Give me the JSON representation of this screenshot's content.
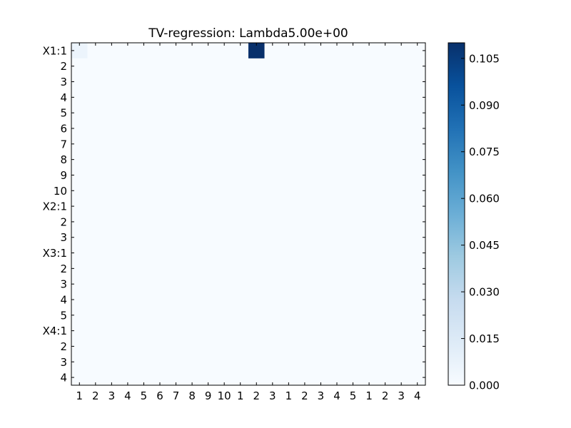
{
  "chart_data": {
    "type": "heatmap",
    "title": "TV-regression: Lambda5.00e+00",
    "row_labels": [
      "X1:1",
      "2",
      "3",
      "4",
      "5",
      "6",
      "7",
      "8",
      "9",
      "10",
      "X2:1",
      "2",
      "3",
      "X3:1",
      "2",
      "3",
      "4",
      "5",
      "X4:1",
      "2",
      "3",
      "4"
    ],
    "col_labels": [
      "1",
      "2",
      "3",
      "4",
      "5",
      "6",
      "7",
      "8",
      "9",
      "10",
      "1",
      "2",
      "3",
      "1",
      "2",
      "3",
      "4",
      "5",
      "1",
      "2",
      "3",
      "4"
    ],
    "cells": [
      {
        "row": 0,
        "col": 0,
        "value": 0.006
      },
      {
        "row": 0,
        "col": 11,
        "value": 0.11
      }
    ],
    "default_value": 0,
    "colormap": "Blues",
    "colorbar": {
      "range": [
        0,
        0.11
      ],
      "ticks": [
        0,
        0.015,
        0.03,
        0.045,
        0.06,
        0.075,
        0.09,
        0.105
      ],
      "tick_labels": [
        "0.000",
        "0.015",
        "0.030",
        "0.045",
        "0.060",
        "0.075",
        "0.090",
        "0.105"
      ]
    }
  }
}
